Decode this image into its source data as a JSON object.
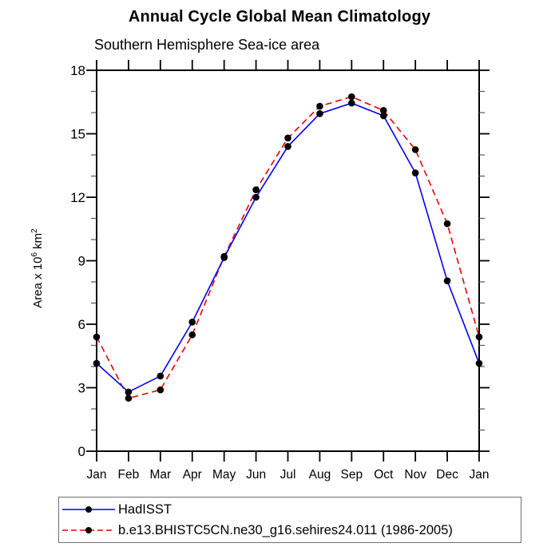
{
  "header": {
    "title": "Annual Cycle Global Mean Climatology",
    "subtitle": "Southern Hemisphere Sea-ice area"
  },
  "chart_data": {
    "type": "line",
    "title": "Annual Cycle Global Mean Climatology",
    "subtitle": "Southern Hemisphere Sea-ice area",
    "categories": [
      "Jan",
      "Feb",
      "Mar",
      "Apr",
      "May",
      "Jun",
      "Jul",
      "Aug",
      "Sep",
      "Oct",
      "Nov",
      "Dec",
      "Jan"
    ],
    "ylabel": "Area x 10^6 km^2",
    "ylabel_parts": {
      "base1": "Area x 10",
      "sup1": "6",
      "base2": " km",
      "sup2": "2"
    },
    "ylim": [
      0,
      18
    ],
    "ytick_major": [
      0,
      3,
      6,
      9,
      12,
      15,
      18
    ],
    "ytick_minor_step": 1,
    "grid": false,
    "legend_position": "bottom-left",
    "marker_color": "#000000",
    "axis_color": "#000000",
    "series": [
      {
        "name": "HadISST",
        "color": "#0000ee",
        "style": "solid",
        "marker": "black-dot",
        "values": [
          4.15,
          2.8,
          3.55,
          6.1,
          9.15,
          12.0,
          14.4,
          15.95,
          16.45,
          15.85,
          13.15,
          8.05,
          4.15
        ]
      },
      {
        "name": "b.e13.BHISTC5CN.ne30_g16.sehires24.011 (1986-2005)",
        "color": "#f00000",
        "style": "dashed",
        "marker": "black-dot",
        "values": [
          5.4,
          2.5,
          2.9,
          5.5,
          9.2,
          12.35,
          14.8,
          16.3,
          16.75,
          16.1,
          14.25,
          10.75,
          5.4
        ]
      }
    ]
  }
}
